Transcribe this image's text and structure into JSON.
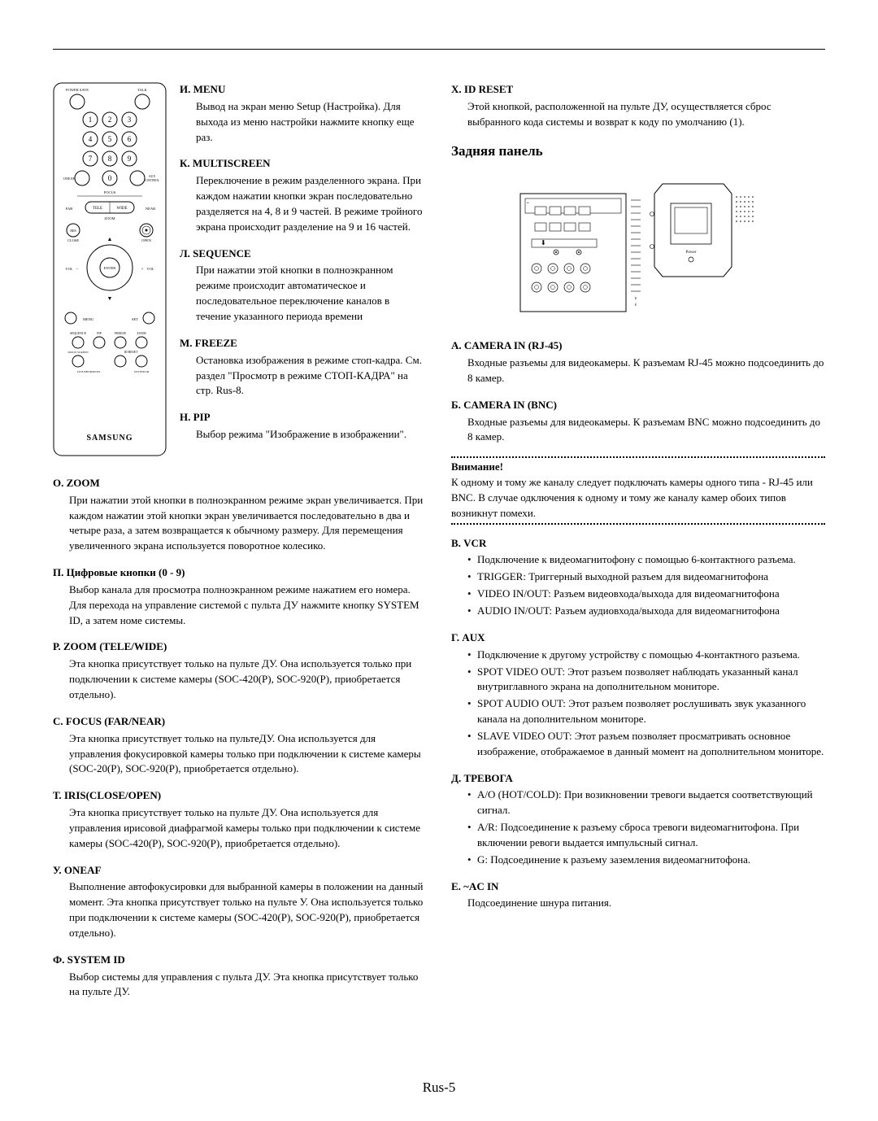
{
  "page_number": "Rus-5",
  "remote": {
    "brand": "SAMSUNG",
    "top_left_label": "POWER SAVE",
    "top_right_label": "TALK",
    "numeric": [
      "1",
      "2",
      "3",
      "4",
      "5",
      "6",
      "7",
      "8",
      "9",
      "0"
    ],
    "left_of_zero": "ONEAF",
    "right_of_zero": "AUX CONTROL",
    "focus_label": "FOCUS",
    "tele": "TELE",
    "wide": "WIDE",
    "far": "FAR",
    "near": "NEAR",
    "zoom_small": "ZOOM",
    "iris": "IRIS",
    "close": "CLOSE",
    "open": "OPEN",
    "enter": "ENTER",
    "vol_label": "VOL",
    "plus": "+",
    "minus": "–",
    "up": "▲",
    "down": "▼",
    "menu": "MENU",
    "set": "SET",
    "row1": [
      "SEQUENCE",
      "PIP",
      "FREEZE",
      "ZOOM"
    ],
    "row2_left": "MULTI SCREEN",
    "row2_right": "ID RESET",
    "row3_left": "LIVE/PB/TRIPLEX",
    "row3_right": "SYSTEM ID"
  },
  "left_sections_a": [
    {
      "title": "И. MENU",
      "body": "Вывод на экран меню Setup (Настройка). Для выхода из меню настройки нажмите кнопку еще раз."
    },
    {
      "title": "К. MULTISCREEN",
      "body": "Переключение в режим разделенного экрана. При каждом нажатии кнопки экран последовательно разделяется на 4, 8 и 9 частей. В режиме тройного экрана происходит разделение на 9 и 16 частей."
    },
    {
      "title": "Л. SEQUENCE",
      "body": "При нажатии этой кнопки в полноэкранном режиме происходит автоматическое и последовательное переключение каналов в течение указанного периода времени"
    },
    {
      "title": "М. FREEZE",
      "body": "Остановка изображения в режиме стоп-кадра. См. раздел \"Просмотр в режиме СТОП-КАДРА\" на стр. Rus-8."
    },
    {
      "title": "Н. PIP",
      "body": "Выбор режима \"Изображение в изображении\"."
    }
  ],
  "left_sections_b": [
    {
      "title": "О. ZOOM",
      "body": "При нажатии этой кнопки в полноэкранном режиме экран увеличивается. При каждом нажатии этой кнопки экран увеличивается последовательно в два и четыре раза, а затем возвращается к обычному размеру. Для перемещения увеличенного экрана используется поворотное колесико."
    },
    {
      "title": "П. Цифровые кнопки (0 - 9)",
      "body": "Выбор канала для просмотра  полноэкранном режиме нажатием его номера. Для перехода на управление системой с пульта ДУ нажмите кнопку SYSTEM ID, а затем номе системы."
    },
    {
      "title": "Р. ZOOM (TELE/WIDE)",
      "body": "Эта кнопка присутствует только на пульте ДУ. Она используется только при подключении к системе камеры (SOC-420(P), SOC-920(P), приобретается отдельно)."
    },
    {
      "title": "С. FOCUS (FAR/NEAR)",
      "body": "Эта кнопка присутствует только на пультеДУ. Она используется для управления фокусировкой камеры только при подключении к системе камеры (SOC-20(P), SOC-920(P), приобретается отдельно)."
    },
    {
      "title": "Т. IRIS(CLOSE/OPEN)",
      "body": "Эта кнопка присутствует только на пульте ДУ. Она используется для управления ирисовой диафрагмой камеры только при подключении к системе камеры (SOC-420(P), SOC-920(P), приобретается отдельно)."
    },
    {
      "title": "У. ONEAF",
      "body": "Выполнение автофокусировки для выбранной камеры в положении на данный момент. Эта кнопка присутствует только на пульте У. Она используется только при подключении к системе камеры (SOC-420(P), SOC-920(P), приобретается отдельно)."
    },
    {
      "title": "Ф. SYSTEM ID",
      "body": "Выбор системы для управления с пульта ДУ. Эта кнопка присутствует только на пульте ДУ."
    }
  ],
  "right_sections_top": [
    {
      "title": "Х. ID RESET",
      "body": "Этой кнопкой, расположенной на пульте ДУ, осуществляется сброс выбранного кода системы и возврат к коду по умолчанию (1)."
    }
  ],
  "rear_panel_heading": "Задняя панель",
  "rear_labels": {
    "label_top": "A",
    "monitor_text": "Power"
  },
  "right_sections_a": [
    {
      "title": "А. CAMERA IN (RJ-45)",
      "body": "Входные разъемы для видеокамеры. К разъемам RJ-45 можно подсоединить до 8 камер."
    },
    {
      "title": "Б. CAMERA IN (BNC)",
      "body": "Входные разъемы для видеокамеры. К разъемам BNC можно подсоединить до 8 камер."
    }
  ],
  "warning": {
    "title": "Внимание!",
    "body": "К одному и тому же каналу следует подключать камеры одного типа - RJ-45 или BNC. В случае одключения к одному и тому же каналу камер обоих типов возникнут помехи."
  },
  "right_sections_b": [
    {
      "title": "В. VCR",
      "bullets": [
        "Подключение к видеомагнитофону с помощью 6-контактного разъема.",
        "TRIGGER: Триггерный выходной разъем для видеомагнитофона",
        "VIDEO IN/OUT: Разъем видеовхода/выхода для видеомагнитофона",
        "AUDIO IN/OUT: Разъем аудиовхода/выхода для видеомагнитофона"
      ]
    },
    {
      "title": "Г. AUX",
      "bullets": [
        "Подключение к другому устройству с помощью 4-контактного разъема.",
        "SPOT VIDEO OUT: Этот разъем позволяет наблюдать указанный канал внутриглавного экрана на дополнительном мониторе.",
        "SPOT AUDIO OUT: Этот разъем позволяет рослушивать звук указанного канала на дополнительном мониторе.",
        "SLAVE VIDEO OUT: Этот разъем позволяет просматривать основное изображение, отображаемое в данный момент на дополнительном мониторе."
      ]
    },
    {
      "title": "Д. ТРЕВОГА",
      "bullets": [
        "A/O (HOT/COLD): При возикновении тревоги выдается соответствующий сигнал.",
        "A/R: Подсоединение к разъему сброса тревоги видеомагнитофона. При включении ревоги выдается импульсный сигнал.",
        "G: Подсоединение к разъему заземления видеомагнитофона."
      ]
    }
  ],
  "right_sections_c": [
    {
      "title": "Е. ~AC IN",
      "body": "Подсоединение шнура питания."
    }
  ],
  "colors": {
    "text": "#000000",
    "bg": "#ffffff",
    "stroke": "#000000"
  }
}
